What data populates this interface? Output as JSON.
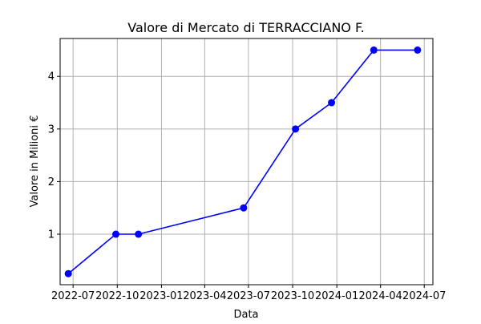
{
  "chart_data": {
    "type": "line",
    "title": "Valore di Mercato di TERRACCIANO F.",
    "xlabel": "Data",
    "ylabel": "Valore in Milioni €",
    "x_tick_labels": [
      "2022-07",
      "2022-10",
      "2023-01",
      "2023-04",
      "2023-07",
      "2023-10",
      "2024-01",
      "2024-04",
      "2024-07"
    ],
    "x_ticks": [
      "2022-07-01",
      "2022-10-01",
      "2023-01-01",
      "2023-04-01",
      "2023-07-01",
      "2023-10-01",
      "2024-01-01",
      "2024-04-01",
      "2024-07-01"
    ],
    "y_ticks": [
      1,
      2,
      3,
      4
    ],
    "xlim": [
      "2022-06-04",
      "2024-07-19"
    ],
    "ylim": [
      0.04,
      4.72
    ],
    "grid": true,
    "series": [
      {
        "color": "#0000ff",
        "marker": "circle",
        "x": [
          "2022-06-21",
          "2022-09-28",
          "2022-11-14",
          "2023-06-21",
          "2023-10-07",
          "2023-12-21",
          "2024-03-18",
          "2024-06-17"
        ],
        "y": [
          0.25,
          1,
          1,
          1.5,
          3,
          3.5,
          4.5,
          4.5
        ]
      }
    ]
  }
}
